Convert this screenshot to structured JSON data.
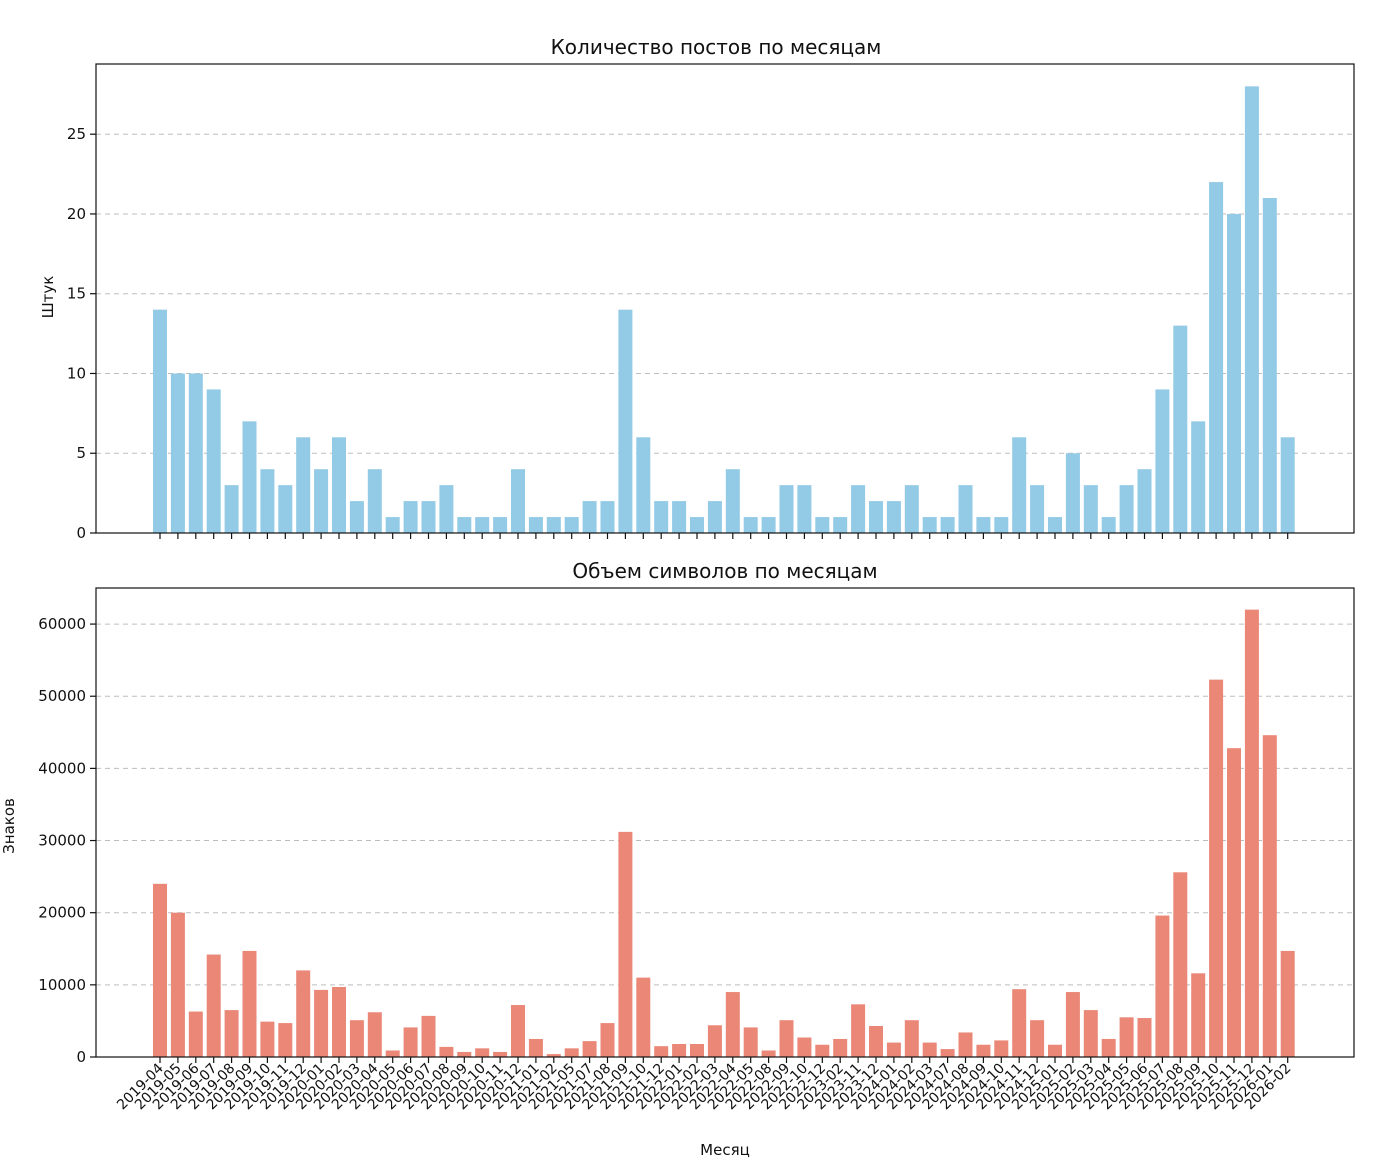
{
  "chart_data": [
    {
      "type": "bar",
      "title": "Количество постов по месяцам",
      "ylabel": "Штук",
      "xlabel": "",
      "ylim": [
        0,
        29.4
      ],
      "yticks": [
        0,
        5,
        10,
        15,
        20,
        25
      ],
      "grid": true,
      "color": "#93cae6",
      "values": [
        14,
        10,
        10,
        9,
        3,
        7,
        4,
        3,
        6,
        4,
        6,
        2,
        4,
        1,
        2,
        2,
        3,
        1,
        1,
        1,
        4,
        1,
        1,
        1,
        2,
        2,
        14,
        6,
        2,
        2,
        1,
        2,
        4,
        1,
        1,
        3,
        3,
        1,
        1,
        3,
        2,
        2,
        3,
        1,
        1,
        3,
        1,
        1,
        6,
        3,
        1,
        5,
        3,
        1,
        3,
        4,
        9,
        13,
        7,
        22,
        20,
        28,
        21,
        6
      ]
    },
    {
      "type": "bar",
      "title": "Объем символов по месяцам",
      "ylabel": "Знаков",
      "xlabel": "Месяц",
      "ylim": [
        0,
        65000
      ],
      "yticks": [
        0,
        10000,
        20000,
        30000,
        40000,
        50000,
        60000
      ],
      "grid": true,
      "color": "#ea8777",
      "values": [
        24000,
        20000,
        6300,
        14200,
        6500,
        14700,
        4900,
        4700,
        12000,
        9300,
        9700,
        5100,
        6200,
        900,
        4100,
        5700,
        1400,
        700,
        1200,
        700,
        7200,
        2500,
        400,
        1200,
        2200,
        4700,
        31200,
        11000,
        1500,
        1800,
        1800,
        4400,
        9000,
        4100,
        900,
        5100,
        2700,
        1700,
        2500,
        7300,
        4300,
        2000,
        5100,
        2000,
        1100,
        3400,
        1700,
        2300,
        9400,
        5100,
        1700,
        9000,
        6500,
        2500,
        5500,
        5400,
        19600,
        25600,
        11600,
        52300,
        42800,
        62000,
        44600,
        14700
      ]
    }
  ],
  "x_categories": [
    "2019-04",
    "2019-05",
    "2019-06",
    "2019-07",
    "2019-08",
    "2019-09",
    "2019-10",
    "2019-11",
    "2019-12",
    "2020-01",
    "2020-02",
    "2020-03",
    "2020-04",
    "2020-05",
    "2020-06",
    "2020-07",
    "2020-08",
    "2020-09",
    "2020-10",
    "2020-11",
    "2020-12",
    "2021-01",
    "2021-02",
    "2021-05",
    "2021-07",
    "2021-08",
    "2021-09",
    "2021-10",
    "2021-12",
    "2022-01",
    "2022-02",
    "2022-03",
    "2022-04",
    "2022-05",
    "2022-08",
    "2022-09",
    "2022-10",
    "2022-12",
    "2023-02",
    "2023-11",
    "2023-12",
    "2024-01",
    "2024-02",
    "2024-03",
    "2024-07",
    "2024-08",
    "2024-09",
    "2024-10",
    "2024-11",
    "2024-12",
    "2025-01",
    "2025-02",
    "2025-03",
    "2025-04",
    "2025-05",
    "2025-06",
    "2025-07",
    "2025-08",
    "2025-09",
    "2025-10",
    "2025-11",
    "2025-12",
    "2026-01",
    "2026-02"
  ]
}
